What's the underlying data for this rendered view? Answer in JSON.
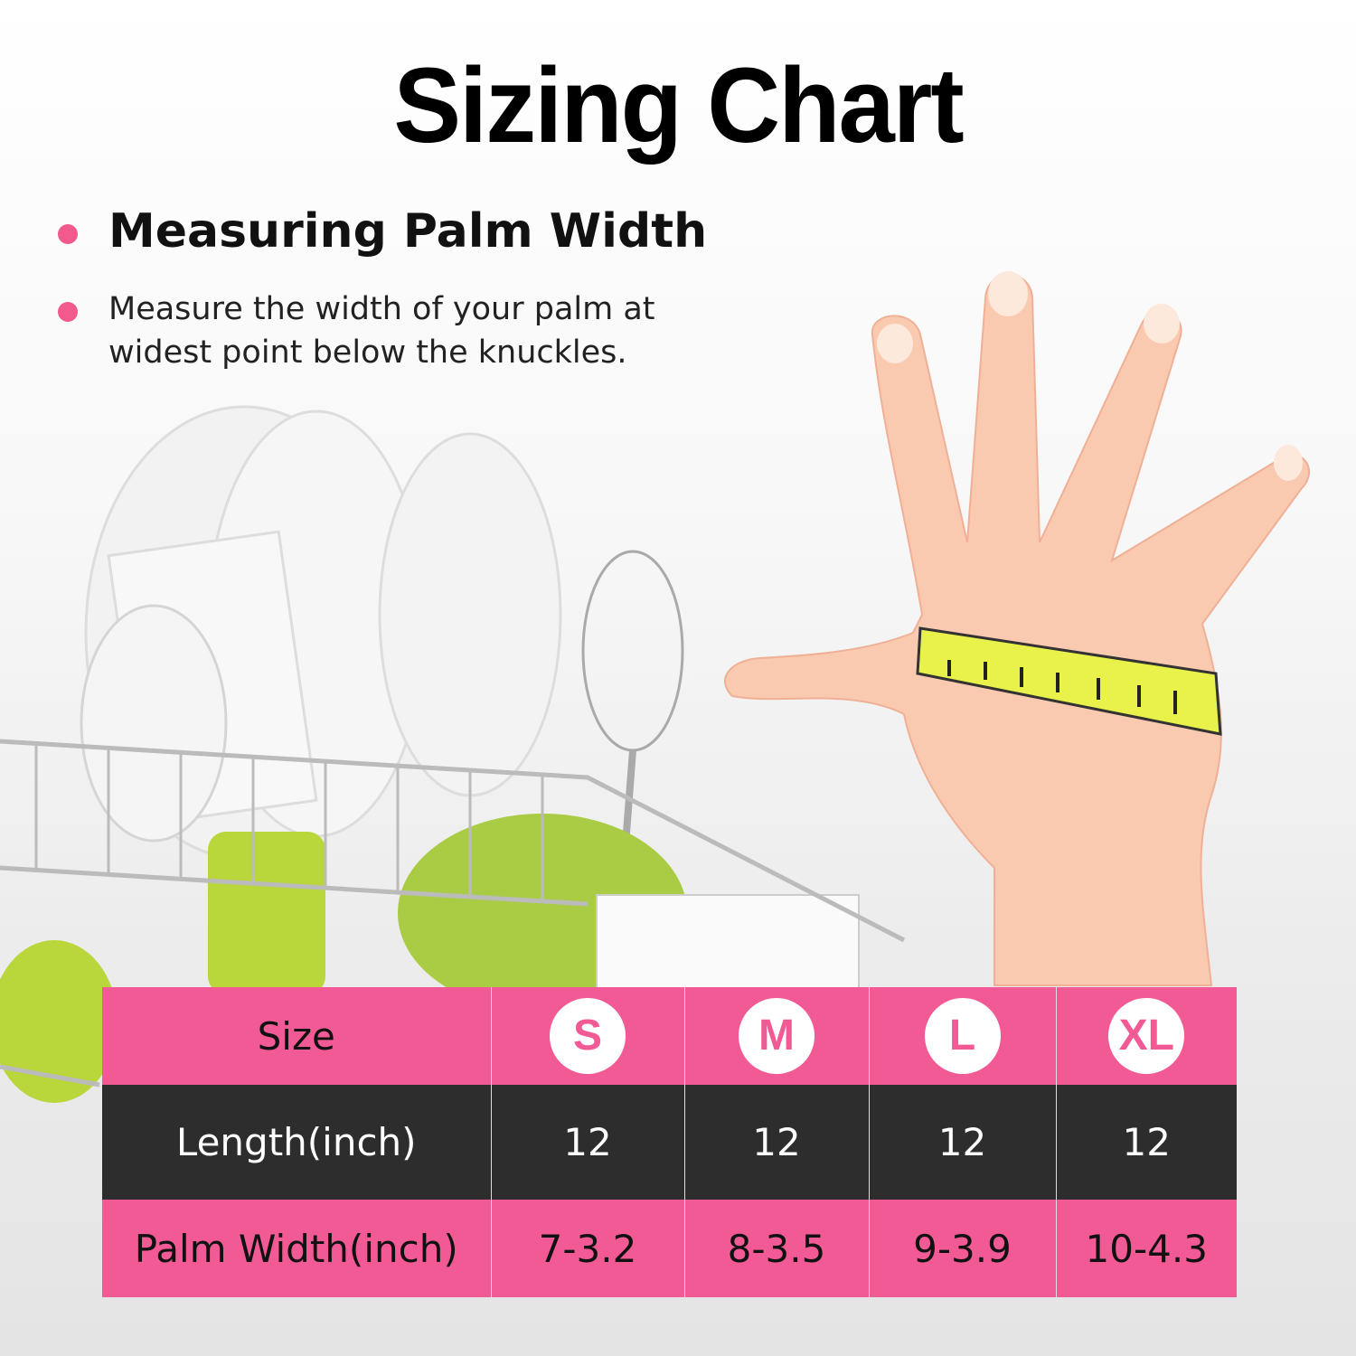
{
  "title": "Sizing Chart",
  "heading": "Measuring Palm Width",
  "description_lines": [
    "Measure the width of your palm at",
    "widest point below the knuckles."
  ],
  "colors": {
    "accent": "#f25a95",
    "dark_row": "#1e1e1e",
    "tape": "#e8f24a",
    "skin": "#f9c9b0"
  },
  "table": {
    "row_labels": [
      "Size",
      "Length(inch)",
      "Palm Width(inch)"
    ],
    "sizes": [
      "S",
      "M",
      "L",
      "XL"
    ],
    "length": [
      "12",
      "12",
      "12",
      "12"
    ],
    "palm_width": [
      "7-3.2",
      "8-3.5",
      "9-3.9",
      "10-4.3"
    ]
  }
}
